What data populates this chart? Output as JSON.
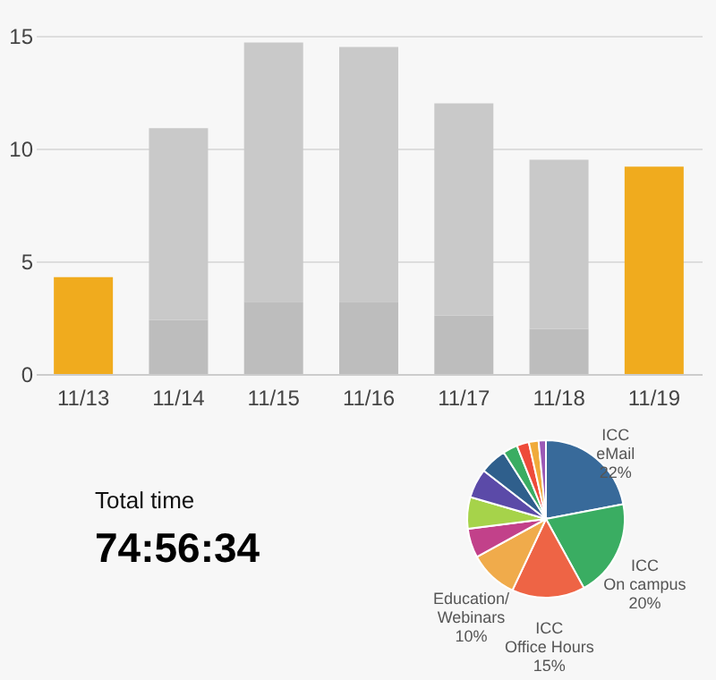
{
  "chart_data": [
    {
      "type": "bar",
      "stacked": true,
      "categories": [
        "11/13",
        "11/14",
        "11/15",
        "11/16",
        "11/17",
        "11/18",
        "11/19"
      ],
      "series": [
        {
          "colors": [
            "#f0ab1e",
            "#bdbdbd",
            "#bdbdbd",
            "#bdbdbd",
            "#bdbdbd",
            "#bdbdbd",
            "#f0ab1e"
          ],
          "values": [
            4.3,
            2.4,
            3.2,
            3.2,
            2.6,
            2.0,
            9.2
          ]
        },
        {
          "color": "#c9c9c9",
          "values": [
            null,
            8.5,
            11.5,
            11.3,
            9.4,
            7.5,
            null
          ]
        }
      ],
      "ylim": [
        0,
        15
      ],
      "yticks": [
        0,
        5,
        10,
        15
      ],
      "grid": "y"
    },
    {
      "type": "pie",
      "categories": [
        "ICC eMail",
        "ICC On campus",
        "ICC Office Hours",
        "Education/ Webinars",
        null,
        null,
        null,
        null,
        null,
        null,
        null,
        null
      ],
      "values": [
        22,
        20,
        15,
        10,
        6,
        6.5,
        6,
        5.5,
        3,
        2.5,
        2,
        1.5
      ],
      "colors": [
        "#386a9a",
        "#3aad62",
        "#ee6445",
        "#f0ab4b",
        "#c2418a",
        "#a6d34a",
        "#5b4aa8",
        "#2f5f8c",
        "#3aad62",
        "#ee4b3a",
        "#f0ab3b",
        "#9b59b6"
      ],
      "value_labels": [
        "22%",
        "20%",
        "15%",
        "10%",
        null,
        null,
        null,
        null,
        null,
        null,
        null,
        null
      ]
    },
    {
      "type": "other",
      "title": "Total time",
      "annotations": [
        "74:56:34"
      ]
    }
  ]
}
